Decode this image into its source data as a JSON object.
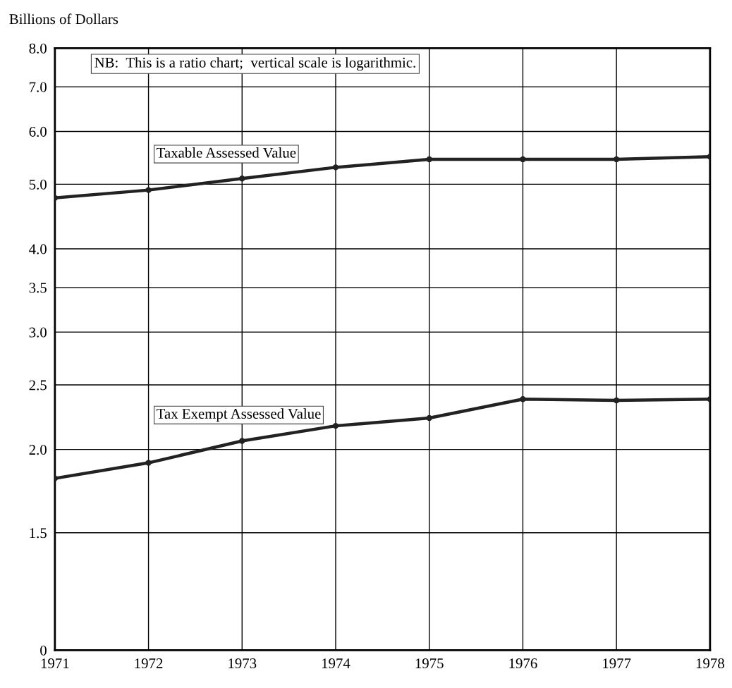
{
  "chart_data": {
    "type": "line",
    "ylabel": "Billions of Dollars",
    "x": [
      1971,
      1972,
      1973,
      1974,
      1975,
      1976,
      1977,
      1978
    ],
    "series": [
      {
        "name": "Taxable Assessed Value",
        "color": "#222222",
        "values": [
          4.77,
          4.9,
          5.1,
          5.3,
          5.45,
          5.45,
          5.45,
          5.5
        ]
      },
      {
        "name": "Tax Exempt Assessed Value",
        "color": "#222222",
        "values": [
          1.81,
          1.91,
          2.06,
          2.17,
          2.23,
          2.38,
          2.37,
          2.38
        ]
      }
    ],
    "annotations": [
      "NB:  This is a ratio chart;  vertical scale is logarithmic."
    ],
    "log": true,
    "xlim": [
      1971,
      1978
    ],
    "ylim": [
      0,
      8.0
    ],
    "xticks": [
      1971,
      1972,
      1973,
      1974,
      1975,
      1976,
      1977,
      1978
    ],
    "yticks": [
      0,
      {
        "value": 1.5,
        "label": "1.5"
      },
      {
        "value": 2.0,
        "label": "2.0"
      },
      {
        "value": 2.5,
        "label": "2.5"
      },
      {
        "value": 3.0,
        "label": "3.0"
      },
      {
        "value": 3.5,
        "label": "3.5"
      },
      {
        "value": 4.0,
        "label": "4.0"
      },
      {
        "value": 5.0,
        "label": "5.0"
      },
      {
        "value": 6.0,
        "label": "6.0"
      },
      {
        "value": 7.0,
        "label": "7.0"
      },
      {
        "value": 8.0,
        "label": "8.0"
      }
    ],
    "grid": true,
    "marker": "circle",
    "line_style": "solid",
    "legend": false
  }
}
